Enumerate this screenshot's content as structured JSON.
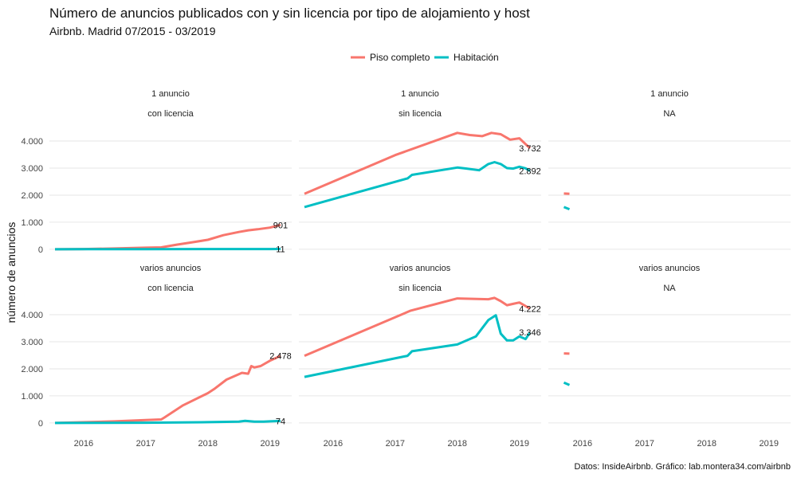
{
  "title": "Número de anuncios publicados con y sin licencia por tipo de alojamiento y host",
  "subtitle": "Airbnb. Madrid 07/2015 - 03/2019",
  "caption": "Datos: InsideAirbnb. Gráfico: lab.montera34.com/airbnb",
  "colors": {
    "piso": "#F8766D",
    "habitacion": "#00BFC4",
    "grid": "#e6e6e6"
  },
  "chart_data": {
    "type": "line",
    "title": "Número de anuncios publicados con y sin licencia por tipo de alojamiento y host",
    "subtitle": "Airbnb. Madrid 07/2015 - 03/2019",
    "ylabel": "número de anuncios",
    "xlabel": "",
    "x_ticks": [
      2016,
      2017,
      2018,
      2019
    ],
    "y_ticks": [
      0,
      1000,
      2000,
      3000,
      4000
    ],
    "y_tick_labels": [
      "0",
      "1.000",
      "2.000",
      "3.000",
      "4.000"
    ],
    "xlim": [
      2015.45,
      2019.35
    ],
    "legend": {
      "position": "top",
      "entries": [
        "Piso completo",
        "Habitación"
      ]
    },
    "grid": true,
    "panels": [
      {
        "row": "1 anuncio",
        "col": "con licencia",
        "ylim": [
          -150,
          4500
        ],
        "series": [
          {
            "name": "Piso completo",
            "x": [
              2015.54,
              2016.0,
              2016.5,
              2017.0,
              2017.25,
              2017.5,
              2017.75,
              2018.0,
              2018.25,
              2018.5,
              2018.65,
              2018.8,
              2019.0,
              2019.17
            ],
            "y": [
              0,
              10,
              30,
              60,
              70,
              170,
              260,
              350,
              520,
              640,
              700,
              740,
              800,
              901
            ]
          },
          {
            "name": "Habitación",
            "x": [
              2015.54,
              2016.0,
              2017.0,
              2018.0,
              2019.0,
              2019.17
            ],
            "y": [
              0,
              2,
              5,
              8,
              10,
              11
            ]
          }
        ],
        "end_labels": [
          "901",
          "11"
        ]
      },
      {
        "row": "1 anuncio",
        "col": "sin licencia",
        "ylim": [
          -150,
          4500
        ],
        "series": [
          {
            "name": "Piso completo",
            "x": [
              2015.54,
              2017.0,
              2018.0,
              2018.2,
              2018.4,
              2018.55,
              2018.7,
              2018.85,
              2019.0,
              2019.17
            ],
            "y": [
              2050,
              3480,
              4300,
              4220,
              4180,
              4300,
              4250,
              4050,
              4100,
              3732
            ]
          },
          {
            "name": "Habitación",
            "x": [
              2015.54,
              2017.2,
              2017.27,
              2018.0,
              2018.15,
              2018.35,
              2018.5,
              2018.6,
              2018.7,
              2018.8,
              2018.9,
              2019.0,
              2019.1,
              2019.17
            ],
            "y": [
              1560,
              2620,
              2750,
              3020,
              2980,
              2920,
              3150,
              3220,
              3150,
              3000,
              2980,
              3050,
              2990,
              2892
            ]
          }
        ],
        "end_labels": [
          "3.732",
          "2.892"
        ]
      },
      {
        "row": "1 anuncio",
        "col": "NA",
        "ylim": [
          -150,
          4500
        ],
        "series": [
          {
            "name": "Piso completo",
            "x": [
              2015.7,
              2015.79
            ],
            "y": [
              2060,
              2050
            ]
          },
          {
            "name": "Habitación",
            "x": [
              2015.7,
              2015.79
            ],
            "y": [
              1560,
              1480
            ]
          }
        ],
        "end_labels": []
      },
      {
        "row": "varios anuncios",
        "col": "con licencia",
        "ylim": [
          -150,
          4500
        ],
        "series": [
          {
            "name": "Piso completo",
            "x": [
              2015.54,
              2016.5,
              2017.0,
              2017.25,
              2017.3,
              2017.6,
              2018.0,
              2018.1,
              2018.3,
              2018.55,
              2018.65,
              2018.7,
              2018.75,
              2018.85,
              2019.0,
              2019.17
            ],
            "y": [
              0,
              60,
              110,
              130,
              200,
              650,
              1100,
              1250,
              1600,
              1850,
              1820,
              2100,
              2050,
              2100,
              2300,
              2478
            ]
          },
          {
            "name": "Habitación",
            "x": [
              2015.54,
              2017.0,
              2018.0,
              2018.5,
              2018.6,
              2018.75,
              2018.9,
              2019.0,
              2019.17
            ],
            "y": [
              0,
              10,
              30,
              50,
              80,
              50,
              50,
              60,
              74
            ]
          }
        ],
        "end_labels": [
          "2.478",
          "74"
        ]
      },
      {
        "row": "varios anuncios",
        "col": "sin licencia",
        "ylim": [
          -150,
          4500
        ],
        "series": [
          {
            "name": "Piso completo",
            "x": [
              2015.54,
              2017.25,
              2018.0,
              2018.5,
              2018.6,
              2018.7,
              2018.8,
              2018.9,
              2019.0,
              2019.17
            ],
            "y": [
              2480,
              4150,
              4600,
              4570,
              4620,
              4500,
              4350,
              4400,
              4450,
              4222
            ]
          },
          {
            "name": "Habitación",
            "x": [
              2015.54,
              2017.2,
              2017.27,
              2018.0,
              2018.3,
              2018.5,
              2018.62,
              2018.7,
              2018.8,
              2018.9,
              2019.0,
              2019.1,
              2019.17
            ],
            "y": [
              1700,
              2480,
              2650,
              2900,
              3200,
              3800,
              3980,
              3300,
              3050,
              3050,
              3200,
              3100,
              3346
            ]
          }
        ],
        "end_labels": [
          "4.222",
          "3.346"
        ]
      },
      {
        "row": "varios anuncios",
        "col": "NA",
        "ylim": [
          -150,
          4500
        ],
        "series": [
          {
            "name": "Piso completo",
            "x": [
              2015.7,
              2015.79
            ],
            "y": [
              2570,
              2560
            ]
          },
          {
            "name": "Habitación",
            "x": [
              2015.7,
              2015.79
            ],
            "y": [
              1490,
              1400
            ]
          }
        ],
        "end_labels": []
      }
    ]
  }
}
